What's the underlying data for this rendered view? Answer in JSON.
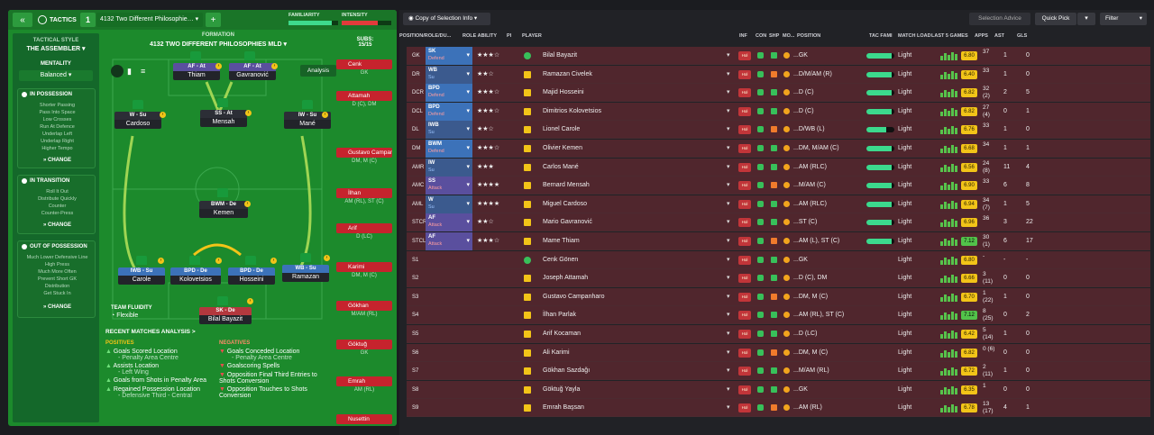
{
  "tactics": {
    "collapse": "«",
    "title": "TACTICS",
    "num": "1",
    "name": "4132 Two Different Philosophie…",
    "add": "+",
    "familiarity": "FAMILIARITY",
    "intensity": "INTENSITY"
  },
  "side": {
    "style_label": "TACTICAL STYLE",
    "style_value": "THE ASSEMBLER",
    "mentality_label": "MENTALITY",
    "mentality_value": "Balanced",
    "in_possession": {
      "title": "IN POSSESSION",
      "lines": [
        "Shorter Passing",
        "Pass Into Space",
        "Low Crosses",
        "Run At Defence",
        "Underlap Left",
        "Underlap Right",
        "Higher Tempo"
      ]
    },
    "in_transition": {
      "title": "IN TRANSITION",
      "lines": [
        "Roll It Out",
        "Distribute Quickly",
        "Counter",
        "Counter-Press"
      ]
    },
    "out_possession": {
      "title": "OUT OF POSSESSION",
      "lines": [
        "Much Lower Defensive Line",
        "High Press",
        "Much More Often",
        "Prevent Short GK",
        "Distribution",
        "Get Stuck In"
      ]
    },
    "change": "CHANGE"
  },
  "formation": {
    "label": "FORMATION",
    "name": "4132 TWO DIFFERENT PHILOSOPHIES MLD",
    "subs_label": "SUBS:",
    "subs_value": "15/15",
    "analysis": "Analysis",
    "fluidity_label": "TEAM FLUIDITY",
    "fluidity_value": "Flexible"
  },
  "pitch": [
    {
      "role": "AF - At",
      "name": "Thiam",
      "color": "#5a4f9e"
    },
    {
      "role": "AF - At",
      "name": "Gavranović",
      "color": "#5a4f9e"
    },
    {
      "role": "W - Su",
      "name": "Cardoso",
      "color": "#2c2e36"
    },
    {
      "role": "SS - At",
      "name": "Mensah",
      "color": "#2c2e36"
    },
    {
      "role": "IW - Su",
      "name": "Mané",
      "color": "#2c2e36"
    },
    {
      "role": "BWM - De",
      "name": "Kemen",
      "color": "#2c2e36"
    },
    {
      "role": "IWB - Su",
      "name": "Carole",
      "color": "#3c72b9"
    },
    {
      "role": "BPD - De",
      "name": "Kolovetsios",
      "color": "#3c72b9"
    },
    {
      "role": "BPD - De",
      "name": "Hosseini",
      "color": "#3c72b9"
    },
    {
      "role": "WB - Su",
      "name": "Ramazan",
      "color": "#3c72b9"
    },
    {
      "role": "SK - De",
      "name": "Bilal Bayazit",
      "color": "#b3383e"
    }
  ],
  "subs": [
    {
      "name": "Cenk",
      "pos": "GK"
    },
    {
      "name": "Attamah",
      "pos": "D (C), DM"
    },
    {
      "name": "Gustavo Campanharo",
      "pos": "DM, M (C)"
    },
    {
      "name": "İlhan",
      "pos": "AM (RL), ST (C)"
    },
    {
      "name": "Arif",
      "pos": "D (LC)"
    },
    {
      "name": "Karimi",
      "pos": "DM, M (C)"
    },
    {
      "name": "Gökhan",
      "pos": "M/AM (RL)"
    },
    {
      "name": "Göktuğ",
      "pos": "GK"
    },
    {
      "name": "Emrah",
      "pos": "AM (RL)"
    },
    {
      "name": "Nusettin",
      "pos": ""
    }
  ],
  "analysis": {
    "title": "RECENT MATCHES ANALYSIS >",
    "pos_label": "POSITIVES",
    "neg_label": "NEGATIVES",
    "positives": [
      {
        "t": "Goals Scored Location",
        "s": "- Penalty Area Centre"
      },
      {
        "t": "Assists Location",
        "s": "- Left Wing"
      },
      {
        "t": "Goals from Shots in Penalty Area",
        "s": ""
      },
      {
        "t": "Regained Possession Location",
        "s": "- Defensive Third - Central"
      }
    ],
    "negatives": [
      {
        "t": "Goals Conceded Location",
        "s": "- Penalty Area Centre"
      },
      {
        "t": "Goalscoring Spells",
        "s": ""
      },
      {
        "t": "Opposition Final Third Entries to Shots Conversion",
        "s": ""
      },
      {
        "t": "Opposition Touches to Shots Conversion",
        "s": ""
      }
    ]
  },
  "toolbar": {
    "copy": "Copy of Selection Info",
    "advice": "Selection Advice",
    "quick_pick": "Quick Pick",
    "filter": "Filter"
  },
  "headers": [
    "POSITION/ROLE/DU...",
    "ROLE ABILITY",
    "PI",
    "PLAYER",
    "INF",
    "CON",
    "SHP",
    "MO...",
    "POSITION",
    "TAC FAMI",
    "MATCH LOAD",
    "LAST 5 GAMES",
    "APPS",
    "AST",
    "GLS"
  ],
  "players": [
    {
      "slot": "GK",
      "role": "SK",
      "duty": "Defend",
      "stars": "★★★☆",
      "name": "Bilal Bayazit",
      "pos": "...GK",
      "load": "Light",
      "rating": "6.80",
      "apps": "37",
      "ast": "1",
      "gls": "0",
      "fam": 0.9,
      "rc": "#f2c418"
    },
    {
      "slot": "DR",
      "role": "WB",
      "duty": "Su",
      "stars": "★★☆",
      "name": "Ramazan Civelek",
      "pos": "...D/M/AM (R)",
      "load": "Light",
      "rating": "6.40",
      "apps": "33",
      "ast": "1",
      "gls": "0",
      "fam": 0.9,
      "rc": "#f2c418"
    },
    {
      "slot": "DCR",
      "role": "BPD",
      "duty": "Defend",
      "stars": "★★★☆",
      "name": "Majid Hosseini",
      "pos": "...D (C)",
      "load": "Light",
      "rating": "6.82",
      "apps": "32 (2)",
      "ast": "2",
      "gls": "5",
      "fam": 0.9,
      "rc": "#f2c418"
    },
    {
      "slot": "DCL",
      "role": "BPD",
      "duty": "Defend",
      "stars": "★★★☆",
      "name": "Dimitrios Kolovetsios",
      "pos": "...D (C)",
      "load": "Light",
      "rating": "6.82",
      "apps": "27 (4)",
      "ast": "0",
      "gls": "1",
      "fam": 0.9,
      "rc": "#f2c418"
    },
    {
      "slot": "DL",
      "role": "IWB",
      "duty": "Su",
      "stars": "★★☆",
      "name": "Lionel Carole",
      "pos": "...D/WB (L)",
      "load": "Light",
      "rating": "6.76",
      "apps": "33",
      "ast": "1",
      "gls": "0",
      "fam": 0.7,
      "rc": "#f2c418"
    },
    {
      "slot": "DM",
      "role": "BWM",
      "duty": "Defend",
      "stars": "★★★☆",
      "name": "Olivier Kemen",
      "pos": "...DM, M/AM (C)",
      "load": "Light",
      "rating": "6.68",
      "apps": "34",
      "ast": "1",
      "gls": "1",
      "fam": 0.9,
      "rc": "#f2c418"
    },
    {
      "slot": "AMR",
      "role": "IW",
      "duty": "Su",
      "stars": "★★★",
      "name": "Carlos Mané",
      "pos": "...AM (RLC)",
      "load": "Light",
      "rating": "6.56",
      "apps": "24 (8)",
      "ast": "11",
      "gls": "4",
      "fam": 0.9,
      "rc": "#f2c418"
    },
    {
      "slot": "AMC",
      "role": "SS",
      "duty": "Attack",
      "stars": "★★★★",
      "name": "Bernard Mensah",
      "pos": "...M/AM (C)",
      "load": "Light",
      "rating": "6.90",
      "apps": "33",
      "ast": "6",
      "gls": "8",
      "fam": 0.9,
      "rc": "#f2c418"
    },
    {
      "slot": "AML",
      "role": "W",
      "duty": "Su",
      "stars": "★★★★",
      "name": "Miguel Cardoso",
      "pos": "...AM (RLC)",
      "load": "Light",
      "rating": "6.94",
      "apps": "34 (7)",
      "ast": "1",
      "gls": "5",
      "fam": 0.9,
      "rc": "#f2c418"
    },
    {
      "slot": "STCR",
      "role": "AF",
      "duty": "Attack",
      "stars": "★★☆",
      "name": "Mario Gavranović",
      "pos": "...ST (C)",
      "load": "Light",
      "rating": "6.96",
      "apps": "36",
      "ast": "3",
      "gls": "22",
      "fam": 0.9,
      "rc": "#f2c418"
    },
    {
      "slot": "STCL",
      "role": "AF",
      "duty": "Attack",
      "stars": "★★★☆",
      "name": "Mame Thiam",
      "pos": "...AM (L), ST (C)",
      "load": "Light",
      "rating": "7.12",
      "apps": "30 (1)",
      "ast": "6",
      "gls": "17",
      "fam": 0.9,
      "rc": "#52c24a"
    },
    {
      "slot": "S1",
      "role": "",
      "duty": "",
      "stars": "",
      "name": "Cenk Gönen",
      "pos": "...GK",
      "load": "Light",
      "rating": "6.80",
      "apps": "-",
      "ast": "-",
      "gls": "-",
      "fam": 0,
      "rc": "#f2c418"
    },
    {
      "slot": "S2",
      "role": "",
      "duty": "",
      "stars": "",
      "name": "Joseph Attamah",
      "pos": "...D (C), DM",
      "load": "Light",
      "rating": "6.66",
      "apps": "3 (11)",
      "ast": "0",
      "gls": "0",
      "fam": 0,
      "rc": "#f2c418"
    },
    {
      "slot": "S3",
      "role": "",
      "duty": "",
      "stars": "",
      "name": "Gustavo Campanharo",
      "pos": "...DM, M (C)",
      "load": "Light",
      "rating": "6.70",
      "apps": "1 (22)",
      "ast": "1",
      "gls": "0",
      "fam": 0,
      "rc": "#f2c418"
    },
    {
      "slot": "S4",
      "role": "",
      "duty": "",
      "stars": "",
      "name": "İlhan Parlak",
      "pos": "...AM (RL), ST (C)",
      "load": "Light",
      "rating": "7.12",
      "apps": "8 (25)",
      "ast": "0",
      "gls": "2",
      "fam": 0,
      "rc": "#52c24a"
    },
    {
      "slot": "S5",
      "role": "",
      "duty": "",
      "stars": "",
      "name": "Arif Kocaman",
      "pos": "...D (LC)",
      "load": "Light",
      "rating": "6.42",
      "apps": "5 (14)",
      "ast": "1",
      "gls": "0",
      "fam": 0,
      "rc": "#f2c418"
    },
    {
      "slot": "S6",
      "role": "",
      "duty": "",
      "stars": "",
      "name": "Ali Karimi",
      "pos": "...DM, M (C)",
      "load": "Light",
      "rating": "6.82",
      "apps": "0 (6)",
      "ast": "0",
      "gls": "0",
      "fam": 0,
      "rc": "#f2c418"
    },
    {
      "slot": "S7",
      "role": "",
      "duty": "",
      "stars": "",
      "name": "Gökhan Sazdağı",
      "pos": "...M/AM (RL)",
      "load": "Light",
      "rating": "6.72",
      "apps": "2 (11)",
      "ast": "1",
      "gls": "0",
      "fam": 0,
      "rc": "#f2c418"
    },
    {
      "slot": "S8",
      "role": "",
      "duty": "",
      "stars": "",
      "name": "Göktuğ Yayla",
      "pos": "...GK",
      "load": "Light",
      "rating": "6.35",
      "apps": "1",
      "ast": "0",
      "gls": "0",
      "fam": 0,
      "rc": "#f2c418"
    },
    {
      "slot": "S9",
      "role": "",
      "duty": "",
      "stars": "",
      "name": "Emrah Başsan",
      "pos": "...AM (RL)",
      "load": "Light",
      "rating": "6.78",
      "apps": "13 (17)",
      "ast": "4",
      "gls": "1",
      "fam": 0,
      "rc": "#f2c418"
    }
  ],
  "colors": {
    "accent": "#1c8a2c",
    "defend": "#3c72b9",
    "attack": "#5a4f9e",
    "row": "#50262d"
  }
}
